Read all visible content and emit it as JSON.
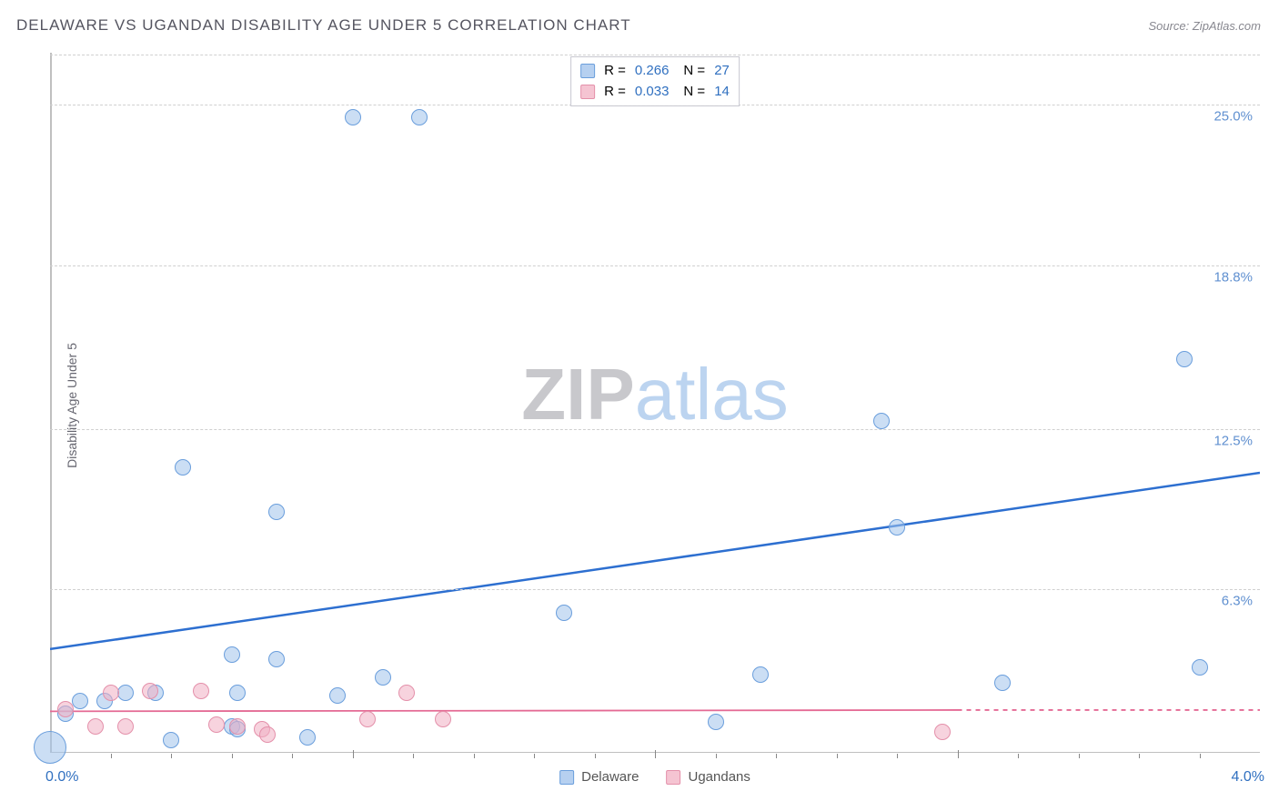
{
  "title": "DELAWARE VS UGANDAN DISABILITY AGE UNDER 5 CORRELATION CHART",
  "source_label": "Source: ",
  "source_domain": "ZipAtlas.com",
  "y_axis_label": "Disability Age Under 5",
  "watermark_zip": "ZIP",
  "watermark_atlas": "atlas",
  "watermark_zip_color": "#c8c8cc",
  "watermark_atlas_color": "#bcd4f0",
  "chart": {
    "type": "scatter",
    "background_color": "#ffffff",
    "grid_color": "#d0d0d0",
    "axis_color": "#c0c0c0",
    "xlim": [
      0.0,
      4.0
    ],
    "ylim": [
      0.0,
      27.0
    ],
    "x_tick_step_minor_count": 9,
    "y_ticks": [
      6.3,
      12.5,
      18.8,
      25.0
    ],
    "y_tick_labels": [
      "6.3%",
      "12.5%",
      "18.8%",
      "25.0%"
    ],
    "x_labels": {
      "min": "0.0%",
      "max": "4.0%"
    },
    "tick_label_color": "#6090d0",
    "xlim_label_color": "#3070c0"
  },
  "legend_top": {
    "border_color": "#c8c8d0",
    "text_color_num": "#3070c0",
    "rows": [
      {
        "swatch_fill": "#b6d0f0",
        "swatch_stroke": "#6a9edc",
        "r_label": "R =",
        "r_value": "0.266",
        "n_label": "N =",
        "n_value": "27"
      },
      {
        "swatch_fill": "#f5c4d2",
        "swatch_stroke": "#e490aa",
        "r_label": "R =",
        "r_value": "0.033",
        "n_label": "N =",
        "n_value": "14"
      }
    ]
  },
  "series_legend": {
    "items": [
      {
        "swatch_fill": "#b6d0f0",
        "swatch_stroke": "#6a9edc",
        "label": "Delaware"
      },
      {
        "swatch_fill": "#f5c4d2",
        "swatch_stroke": "#e490aa",
        "label": "Ugandans"
      }
    ]
  },
  "series": [
    {
      "name": "Delaware",
      "fill": "rgba(160,195,235,0.55)",
      "stroke": "#6a9edc",
      "radius": 9,
      "points": [
        {
          "x": 0.0,
          "y": 0.2,
          "r": 18
        },
        {
          "x": 0.05,
          "y": 1.5
        },
        {
          "x": 0.1,
          "y": 2.0
        },
        {
          "x": 0.18,
          "y": 2.0
        },
        {
          "x": 0.25,
          "y": 2.3
        },
        {
          "x": 0.35,
          "y": 2.3
        },
        {
          "x": 0.4,
          "y": 0.5
        },
        {
          "x": 0.44,
          "y": 11.0
        },
        {
          "x": 0.6,
          "y": 1.0
        },
        {
          "x": 0.6,
          "y": 3.8
        },
        {
          "x": 0.62,
          "y": 2.3
        },
        {
          "x": 0.62,
          "y": 0.9
        },
        {
          "x": 0.75,
          "y": 3.6
        },
        {
          "x": 0.75,
          "y": 9.3
        },
        {
          "x": 0.85,
          "y": 0.6
        },
        {
          "x": 0.95,
          "y": 2.2
        },
        {
          "x": 1.0,
          "y": 24.5
        },
        {
          "x": 1.1,
          "y": 2.9
        },
        {
          "x": 1.22,
          "y": 24.5
        },
        {
          "x": 1.7,
          "y": 5.4
        },
        {
          "x": 2.2,
          "y": 1.2
        },
        {
          "x": 2.35,
          "y": 3.0
        },
        {
          "x": 2.75,
          "y": 12.8
        },
        {
          "x": 2.8,
          "y": 8.7
        },
        {
          "x": 3.15,
          "y": 2.7
        },
        {
          "x": 3.75,
          "y": 15.2
        },
        {
          "x": 3.8,
          "y": 3.3
        }
      ],
      "trend": {
        "x1": 0.0,
        "y1": 4.0,
        "x2": 4.0,
        "y2": 10.8,
        "color": "#2d6fd0",
        "width": 2.5
      }
    },
    {
      "name": "Ugandans",
      "fill": "rgba(240,175,195,0.55)",
      "stroke": "#e490aa",
      "radius": 9,
      "points": [
        {
          "x": 0.05,
          "y": 1.7
        },
        {
          "x": 0.15,
          "y": 1.0
        },
        {
          "x": 0.2,
          "y": 2.3
        },
        {
          "x": 0.25,
          "y": 1.0
        },
        {
          "x": 0.33,
          "y": 2.4
        },
        {
          "x": 0.5,
          "y": 2.4
        },
        {
          "x": 0.55,
          "y": 1.1
        },
        {
          "x": 0.62,
          "y": 1.0
        },
        {
          "x": 0.7,
          "y": 0.9
        },
        {
          "x": 0.72,
          "y": 0.7
        },
        {
          "x": 1.05,
          "y": 1.3
        },
        {
          "x": 1.18,
          "y": 2.3
        },
        {
          "x": 1.3,
          "y": 1.3
        },
        {
          "x": 2.95,
          "y": 0.8
        }
      ],
      "trend": {
        "x1": 0.0,
        "y1": 1.6,
        "x2": 3.0,
        "y2": 1.65,
        "x2_dash": 4.0,
        "color": "#e46a94",
        "width": 1.8
      }
    }
  ]
}
